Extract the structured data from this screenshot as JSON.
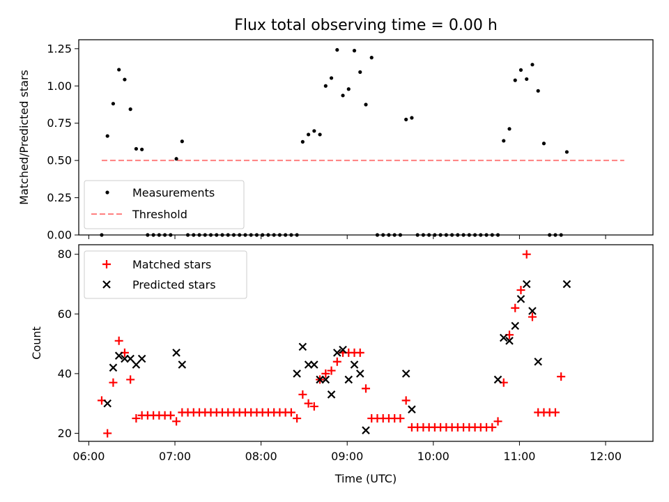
{
  "chart_data": [
    {
      "type": "scatter",
      "title": "Flux total observing time = 0.00 h",
      "xlabel": "",
      "ylabel": "Matched/Predicted stars",
      "xlim": [
        "05:53",
        "12:33"
      ],
      "ylim": [
        0,
        1.31
      ],
      "yticks": [
        {
          "value": 0.0,
          "label": "0.00"
        },
        {
          "value": 0.25,
          "label": "0.25"
        },
        {
          "value": 0.5,
          "label": "0.50"
        },
        {
          "value": 0.75,
          "label": "0.75"
        },
        {
          "value": 1.0,
          "label": "1.00"
        },
        {
          "value": 1.25,
          "label": "1.25"
        }
      ],
      "legend": {
        "placement": "lower-left",
        "entries": [
          "Measurements",
          "Threshold"
        ]
      },
      "series": [
        {
          "name": "Measurements",
          "marker": "dot",
          "color": "#000000",
          "points": [
            [
              "06:09",
              0.0
            ],
            [
              "06:13",
              0.664
            ],
            [
              "06:17",
              0.881
            ],
            [
              "06:21",
              1.109
            ],
            [
              "06:25",
              1.043
            ],
            [
              "06:29",
              0.844
            ],
            [
              "06:33",
              0.578
            ],
            [
              "06:37",
              0.574
            ],
            [
              "06:41",
              0.0
            ],
            [
              "06:45",
              0.0
            ],
            [
              "06:49",
              0.0
            ],
            [
              "06:53",
              0.0
            ],
            [
              "06:57",
              0.0
            ],
            [
              "07:01",
              0.511
            ],
            [
              "07:05",
              0.628
            ],
            [
              "07:09",
              0.0
            ],
            [
              "07:13",
              0.0
            ],
            [
              "07:17",
              0.0
            ],
            [
              "07:21",
              0.0
            ],
            [
              "07:25",
              0.0
            ],
            [
              "07:29",
              0.0
            ],
            [
              "07:33",
              0.0
            ],
            [
              "07:37",
              0.0
            ],
            [
              "07:41",
              0.0
            ],
            [
              "07:45",
              0.0
            ],
            [
              "07:49",
              0.0
            ],
            [
              "07:53",
              0.0
            ],
            [
              "07:57",
              0.0
            ],
            [
              "08:01",
              0.0
            ],
            [
              "08:05",
              0.0
            ],
            [
              "08:09",
              0.0
            ],
            [
              "08:13",
              0.0
            ],
            [
              "08:17",
              0.0
            ],
            [
              "08:21",
              0.0
            ],
            [
              "08:25",
              0.0
            ],
            [
              "08:29",
              0.625
            ],
            [
              "08:33",
              0.674
            ],
            [
              "08:37",
              0.698
            ],
            [
              "08:41",
              0.674
            ],
            [
              "08:45",
              1.0
            ],
            [
              "08:49",
              1.053
            ],
            [
              "08:53",
              1.242
            ],
            [
              "08:57",
              0.936
            ],
            [
              "09:01",
              0.979
            ],
            [
              "09:05",
              1.237
            ],
            [
              "09:09",
              1.093
            ],
            [
              "09:13",
              0.875
            ],
            [
              "09:17",
              1.19
            ],
            [
              "09:21",
              0.0
            ],
            [
              "09:25",
              0.0
            ],
            [
              "09:29",
              0.0
            ],
            [
              "09:33",
              0.0
            ],
            [
              "09:37",
              0.0
            ],
            [
              "09:41",
              0.775
            ],
            [
              "09:45",
              0.786
            ],
            [
              "09:49",
              0.0
            ],
            [
              "09:53",
              0.0
            ],
            [
              "09:57",
              0.0
            ],
            [
              "10:01",
              0.0
            ],
            [
              "10:05",
              0.0
            ],
            [
              "10:09",
              0.0
            ],
            [
              "10:13",
              0.0
            ],
            [
              "10:17",
              0.0
            ],
            [
              "10:21",
              0.0
            ],
            [
              "10:25",
              0.0
            ],
            [
              "10:29",
              0.0
            ],
            [
              "10:33",
              0.0
            ],
            [
              "10:37",
              0.0
            ],
            [
              "10:41",
              0.0
            ],
            [
              "10:45",
              0.0
            ],
            [
              "10:49",
              0.632
            ],
            [
              "10:53",
              0.712
            ],
            [
              "10:57",
              1.038
            ],
            [
              "11:01",
              1.107
            ],
            [
              "11:05",
              1.046
            ],
            [
              "11:09",
              1.143
            ],
            [
              "11:13",
              0.967
            ],
            [
              "11:17",
              0.614
            ],
            [
              "11:21",
              0.0
            ],
            [
              "11:25",
              0.0
            ],
            [
              "11:29",
              0.0
            ],
            [
              "11:33",
              0.557
            ]
          ]
        },
        {
          "name": "Threshold",
          "style": "dashed",
          "color": "#ff7f7f",
          "points": [
            [
              "06:09",
              0.5
            ],
            [
              "12:13",
              0.5
            ]
          ]
        }
      ]
    },
    {
      "type": "scatter",
      "title": "",
      "xlabel": "Time (UTC)",
      "ylabel": "Count",
      "xlim": [
        "05:53",
        "12:33"
      ],
      "ylim": [
        17.3,
        83.2
      ],
      "yticks": [
        {
          "value": 20,
          "label": "20"
        },
        {
          "value": 40,
          "label": "40"
        },
        {
          "value": 60,
          "label": "60"
        },
        {
          "value": 80,
          "label": "80"
        }
      ],
      "xticks": [
        {
          "value": "06:00",
          "label": "06:00"
        },
        {
          "value": "07:00",
          "label": "07:00"
        },
        {
          "value": "08:00",
          "label": "08:00"
        },
        {
          "value": "09:00",
          "label": "09:00"
        },
        {
          "value": "10:00",
          "label": "10:00"
        },
        {
          "value": "11:00",
          "label": "11:00"
        },
        {
          "value": "12:00",
          "label": "12:00"
        }
      ],
      "legend": {
        "placement": "top-left",
        "entries": [
          "Matched stars",
          "Predicted stars"
        ]
      },
      "series": [
        {
          "name": "Matched stars",
          "marker": "plus",
          "color": "#ff0000",
          "points": [
            [
              "06:09",
              31
            ],
            [
              "06:13",
              20
            ],
            [
              "06:17",
              37
            ],
            [
              "06:21",
              51
            ],
            [
              "06:25",
              47
            ],
            [
              "06:29",
              38
            ],
            [
              "06:33",
              25
            ],
            [
              "06:37",
              26
            ],
            [
              "06:41",
              26
            ],
            [
              "06:45",
              26
            ],
            [
              "06:49",
              26
            ],
            [
              "06:53",
              26
            ],
            [
              "06:57",
              26
            ],
            [
              "07:01",
              24
            ],
            [
              "07:05",
              27
            ],
            [
              "07:09",
              27
            ],
            [
              "07:13",
              27
            ],
            [
              "07:17",
              27
            ],
            [
              "07:21",
              27
            ],
            [
              "07:25",
              27
            ],
            [
              "07:29",
              27
            ],
            [
              "07:33",
              27
            ],
            [
              "07:37",
              27
            ],
            [
              "07:41",
              27
            ],
            [
              "07:45",
              27
            ],
            [
              "07:49",
              27
            ],
            [
              "07:53",
              27
            ],
            [
              "07:57",
              27
            ],
            [
              "08:01",
              27
            ],
            [
              "08:05",
              27
            ],
            [
              "08:09",
              27
            ],
            [
              "08:13",
              27
            ],
            [
              "08:17",
              27
            ],
            [
              "08:21",
              27
            ],
            [
              "08:25",
              25
            ],
            [
              "08:29",
              33
            ],
            [
              "08:33",
              30
            ],
            [
              "08:37",
              29
            ],
            [
              "08:41",
              38
            ],
            [
              "08:45",
              40
            ],
            [
              "08:49",
              41
            ],
            [
              "08:53",
              44
            ],
            [
              "08:57",
              47
            ],
            [
              "09:01",
              47
            ],
            [
              "09:05",
              47
            ],
            [
              "09:09",
              47
            ],
            [
              "09:13",
              35
            ],
            [
              "09:17",
              25
            ],
            [
              "09:21",
              25
            ],
            [
              "09:25",
              25
            ],
            [
              "09:29",
              25
            ],
            [
              "09:33",
              25
            ],
            [
              "09:37",
              25
            ],
            [
              "09:41",
              31
            ],
            [
              "09:45",
              22
            ],
            [
              "09:49",
              22
            ],
            [
              "09:53",
              22
            ],
            [
              "09:57",
              22
            ],
            [
              "10:01",
              22
            ],
            [
              "10:05",
              22
            ],
            [
              "10:09",
              22
            ],
            [
              "10:13",
              22
            ],
            [
              "10:17",
              22
            ],
            [
              "10:21",
              22
            ],
            [
              "10:25",
              22
            ],
            [
              "10:29",
              22
            ],
            [
              "10:33",
              22
            ],
            [
              "10:37",
              22
            ],
            [
              "10:41",
              22
            ],
            [
              "10:45",
              24
            ],
            [
              "10:49",
              37
            ],
            [
              "10:53",
              53
            ],
            [
              "10:57",
              62
            ],
            [
              "11:01",
              68
            ],
            [
              "11:05",
              80
            ],
            [
              "11:09",
              59
            ],
            [
              "11:13",
              27
            ],
            [
              "11:17",
              27
            ],
            [
              "11:21",
              27
            ],
            [
              "11:25",
              27
            ],
            [
              "11:29",
              39
            ]
          ]
        },
        {
          "name": "Predicted stars",
          "marker": "x",
          "color": "#000000",
          "points": [
            [
              "06:13",
              30
            ],
            [
              "06:17",
              42
            ],
            [
              "06:21",
              46
            ],
            [
              "06:25",
              45
            ],
            [
              "06:29",
              45
            ],
            [
              "06:33",
              43
            ],
            [
              "06:37",
              45
            ],
            [
              "07:01",
              47
            ],
            [
              "07:05",
              43
            ],
            [
              "08:25",
              40
            ],
            [
              "08:29",
              49
            ],
            [
              "08:33",
              43
            ],
            [
              "08:37",
              43
            ],
            [
              "08:41",
              38
            ],
            [
              "08:45",
              38
            ],
            [
              "08:49",
              33
            ],
            [
              "08:53",
              47
            ],
            [
              "08:57",
              48
            ],
            [
              "09:01",
              38
            ],
            [
              "09:05",
              43
            ],
            [
              "09:09",
              40
            ],
            [
              "09:13",
              21
            ],
            [
              "09:41",
              40
            ],
            [
              "09:45",
              28
            ],
            [
              "10:45",
              38
            ],
            [
              "10:49",
              52
            ],
            [
              "10:53",
              51
            ],
            [
              "10:57",
              56
            ],
            [
              "11:01",
              65
            ],
            [
              "11:05",
              70
            ],
            [
              "11:09",
              61
            ],
            [
              "11:13",
              44
            ],
            [
              "11:33",
              70
            ]
          ]
        }
      ]
    }
  ]
}
